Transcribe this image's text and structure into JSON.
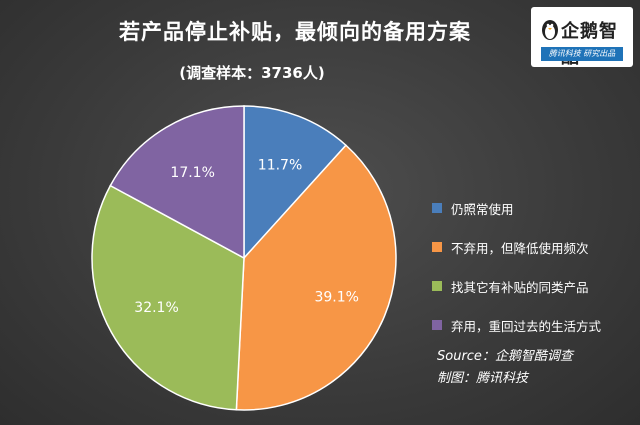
{
  "title": "若产品停止补贴，最倾向的备用方案",
  "subtitle": "(调查样本：3736人)",
  "logo": {
    "text": "企鹅智酷",
    "tagline": "腾讯科技 研究出品"
  },
  "source": {
    "line1": "Source：企鹅智酷调查",
    "line2": "制图：腾讯科技"
  },
  "chart_data": {
    "type": "pie",
    "title": "若产品停止补贴，最倾向的备用方案",
    "subtitle": "(调查样本：3736人)",
    "legend_position": "right",
    "slices": [
      {
        "label": "仍照常使用",
        "value": 11.7,
        "display": "11.7%",
        "color": "#4a7ebb"
      },
      {
        "label": "不弃用，但降低使用频次",
        "value": 39.1,
        "display": "39.1%",
        "color": "#f79646"
      },
      {
        "label": "找其它有补贴的同类产品",
        "value": 32.1,
        "display": "32.1%",
        "color": "#9bbb59"
      },
      {
        "label": "弃用，重回过去的生活方式",
        "value": 17.1,
        "display": "17.1%",
        "color": "#8064a2"
      }
    ]
  }
}
